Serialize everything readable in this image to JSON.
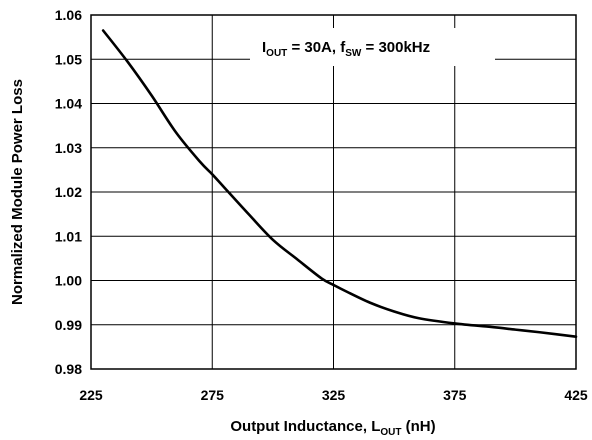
{
  "chart_data": {
    "type": "line",
    "title": "",
    "xlabel": "Output Inductance, L",
    "xlabel_sub": "OUT",
    "xlabel_suffix": " (nH)",
    "ylabel": "Normalized Module Power Loss",
    "xlim": [
      225,
      425
    ],
    "ylim": [
      0.98,
      1.06
    ],
    "x_ticks": [
      "225",
      "275",
      "325",
      "375",
      "425"
    ],
    "y_ticks": [
      "0.98",
      "0.99",
      "1.00",
      "1.01",
      "1.02",
      "1.03",
      "1.04",
      "1.05",
      "1.06"
    ],
    "grid": true,
    "legend": "none",
    "annotation": {
      "i_label": "I",
      "i_sub": "OUT",
      "mid_text": " = 30A, f",
      "f_sub": "SW",
      "end_text": " = 300kHz"
    },
    "series": [
      {
        "color": "#000000",
        "x": [
          230,
          240,
          250,
          260,
          270,
          275,
          280,
          290,
          300,
          310,
          320,
          325,
          330,
          340,
          350,
          360,
          375,
          390,
          400,
          410,
          425
        ],
        "y": [
          1.0565,
          1.0495,
          1.0418,
          1.0335,
          1.0268,
          1.024,
          1.021,
          1.015,
          1.0092,
          1.0048,
          1.0005,
          0.999,
          0.9976,
          0.995,
          0.993,
          0.9915,
          0.9903,
          0.9895,
          0.9889,
          0.9883,
          0.9873
        ]
      }
    ]
  }
}
